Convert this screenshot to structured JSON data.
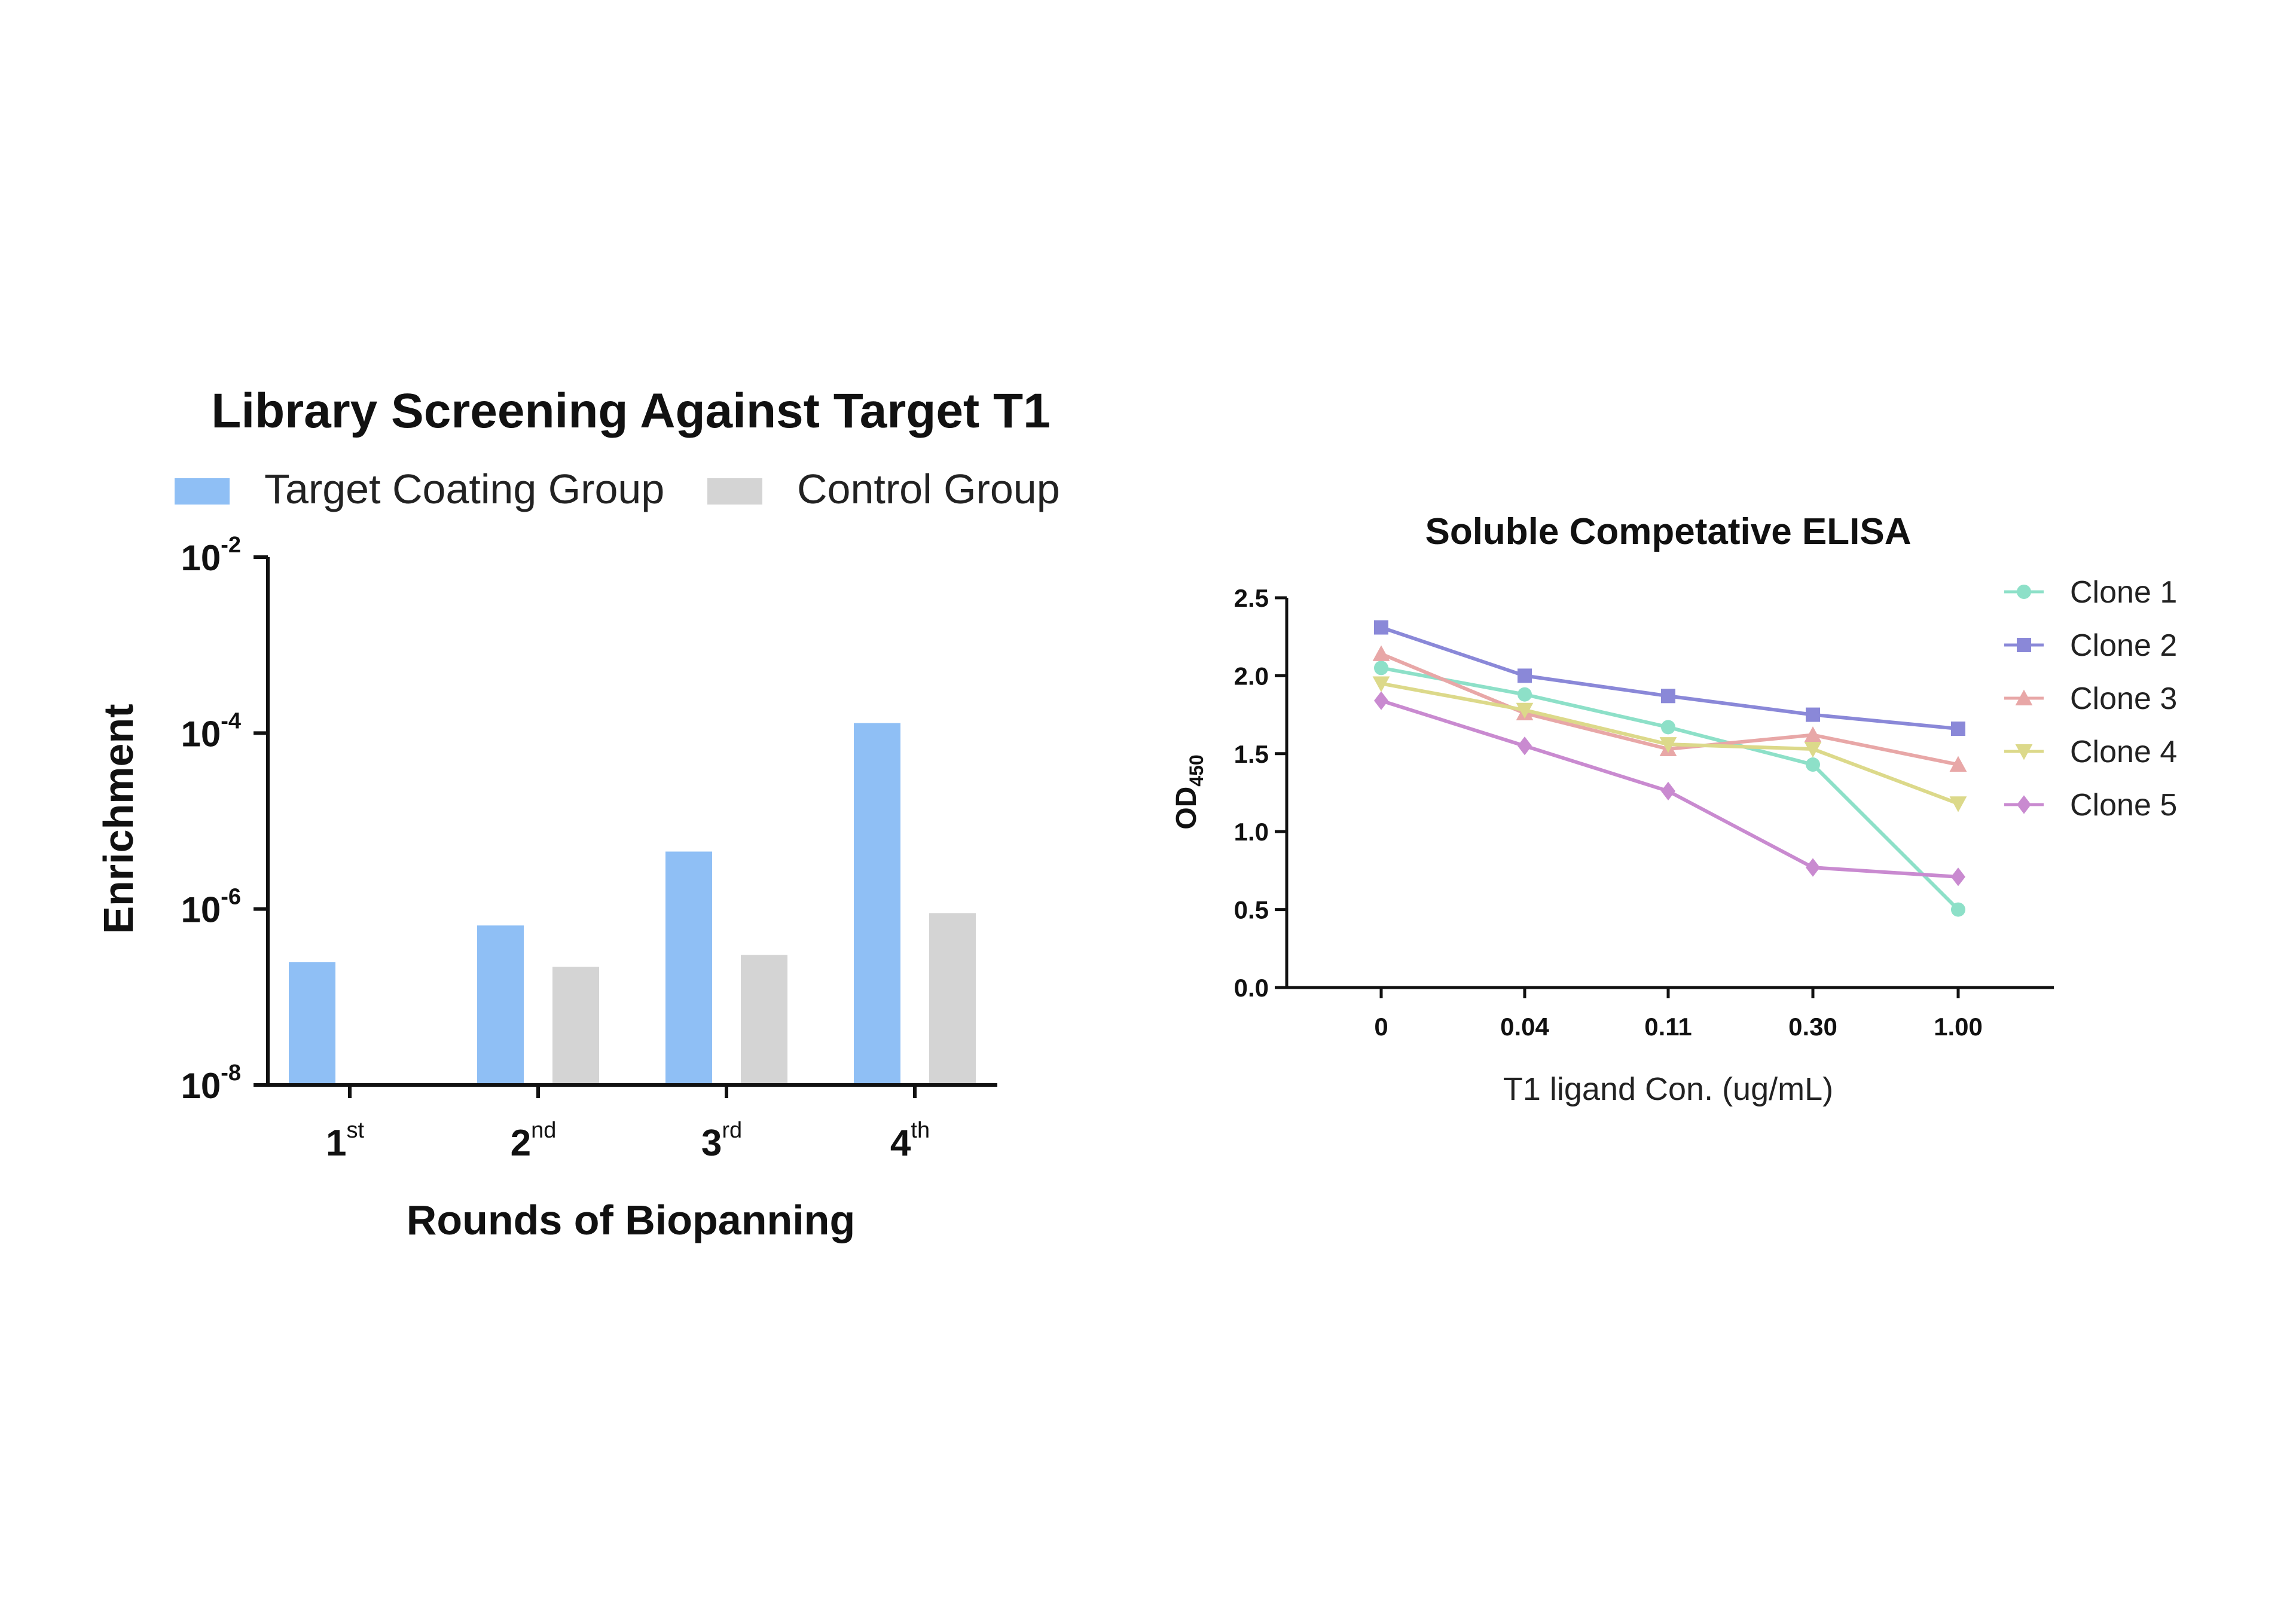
{
  "chart_data": [
    {
      "type": "bar",
      "title": "Library Screening Against Target T1",
      "xlabel": "Rounds of Biopanning",
      "ylabel": "Enrichment",
      "yscale": "log",
      "ylim": [
        1e-08,
        0.01
      ],
      "yticks": [
        {
          "base": "10",
          "exp": "-2"
        },
        {
          "base": "10",
          "exp": "-4"
        },
        {
          "base": "10",
          "exp": "-6"
        },
        {
          "base": "10",
          "exp": "-8"
        }
      ],
      "categories": [
        {
          "num": "1",
          "sup": "st"
        },
        {
          "num": "2",
          "sup": "nd"
        },
        {
          "num": "3",
          "sup": "rd"
        },
        {
          "num": "4",
          "sup": "th"
        }
      ],
      "series": [
        {
          "name": "Target Coating Group",
          "color": "#8fbff5",
          "values": [
            2.5e-07,
            6.5e-07,
            4.5e-06,
            0.00013
          ]
        },
        {
          "name": "Control Group",
          "color": "#d4d4d4",
          "values": [
            null,
            2.2e-07,
            3e-07,
            9e-07
          ]
        }
      ],
      "grid": false,
      "legend": "top"
    },
    {
      "type": "line",
      "title": "Soluble Competative ELISA",
      "xlabel": "T1 ligand Con. (ug/mL)",
      "ylabel": {
        "base": "OD",
        "sub": "450"
      },
      "categories": [
        "0",
        "0.04",
        "0.11",
        "0.30",
        "1.00"
      ],
      "ylim": [
        0,
        2.5
      ],
      "yticks": [
        "0.0",
        "0.5",
        "1.0",
        "1.5",
        "2.0",
        "2.5"
      ],
      "series": [
        {
          "name": "Clone 1",
          "color": "#8de0c8",
          "marker": "circle",
          "values": [
            2.05,
            1.88,
            1.67,
            1.43,
            0.5
          ]
        },
        {
          "name": "Clone 2",
          "color": "#8a88d8",
          "marker": "square",
          "values": [
            2.31,
            2.0,
            1.87,
            1.75,
            1.66
          ]
        },
        {
          "name": "Clone 3",
          "color": "#e8a7a7",
          "marker": "triangle-up",
          "values": [
            2.14,
            1.76,
            1.53,
            1.62,
            1.43
          ]
        },
        {
          "name": "Clone 4",
          "color": "#dcd98a",
          "marker": "triangle-down",
          "values": [
            1.95,
            1.78,
            1.56,
            1.53,
            1.18
          ]
        },
        {
          "name": "Clone 5",
          "color": "#c98ad0",
          "marker": "diamond",
          "values": [
            1.84,
            1.55,
            1.26,
            0.77,
            0.71
          ]
        }
      ],
      "grid": false,
      "legend": "right"
    }
  ]
}
